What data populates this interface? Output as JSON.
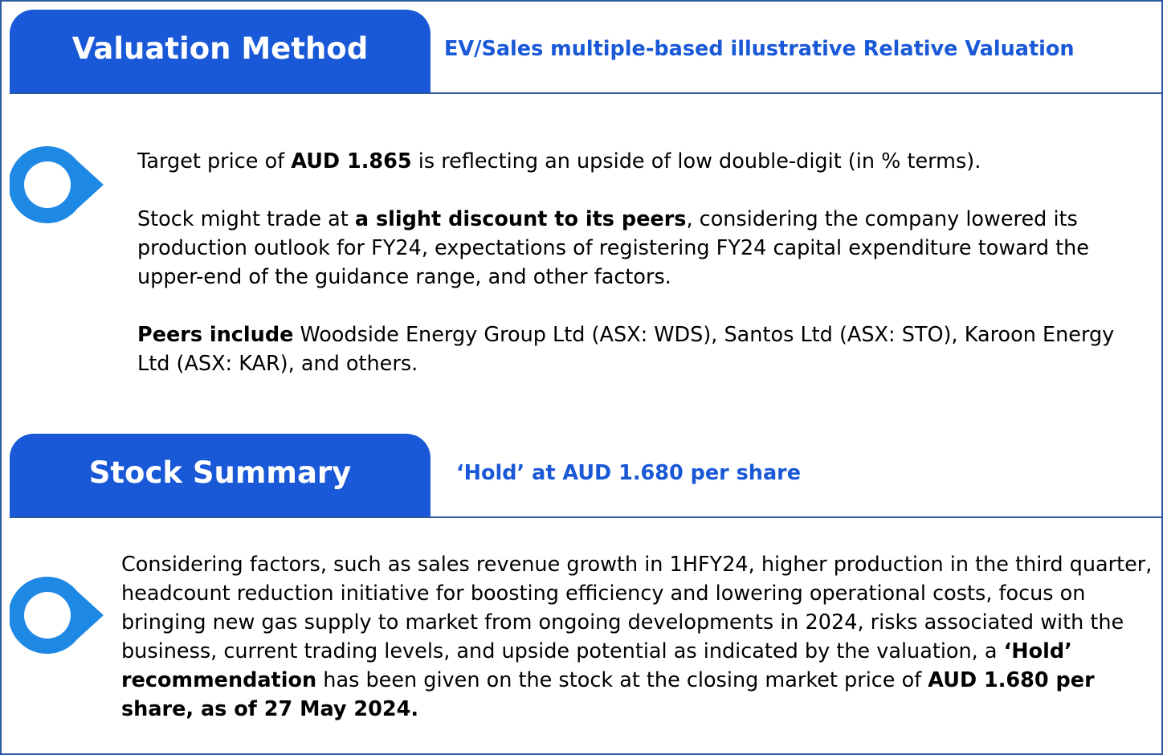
{
  "colors": {
    "brand_blue": "#1958d6",
    "frame_blue": "#2c5aa0",
    "bullet_blue": "#1e88e5"
  },
  "valuation": {
    "tab_title": "Valuation Method",
    "subtitle": "EV/Sales multiple-based illustrative Relative Valuation",
    "p1": {
      "pre": "Target price of ",
      "bold": "AUD 1.865",
      "post": " is reflecting an upside of low double-digit (in % terms)."
    },
    "p2": {
      "pre": "Stock might trade at ",
      "bold": "a slight discount to its peers",
      "post": ", considering the company lowered its production outlook for FY24, expectations of registering FY24 capital expenditure toward the upper-end of the guidance range, and other factors."
    },
    "p3": {
      "bold": "Peers include",
      "post": " Woodside Energy Group Ltd (ASX: WDS), Santos Ltd (ASX: STO), Karoon Energy Ltd (ASX: KAR), and others."
    }
  },
  "summary": {
    "tab_title": "Stock Summary",
    "subtitle": "‘Hold’ at AUD 1.680 per share",
    "p1": {
      "pre": "Considering factors, such as sales revenue growth in 1HFY24, higher production in the third quarter, headcount reduction initiative for boosting efficiency and lowering operational costs, focus on bringing new gas supply to market from ongoing developments in 2024, risks associated with the business, current trading levels, and upside potential as indicated by the valuation, a ",
      "bold1": "‘Hold’ recommendation",
      "mid": " has been given on the stock at the closing market price of ",
      "bold2": "AUD 1.680 per share, as of 27 May 2024."
    }
  }
}
